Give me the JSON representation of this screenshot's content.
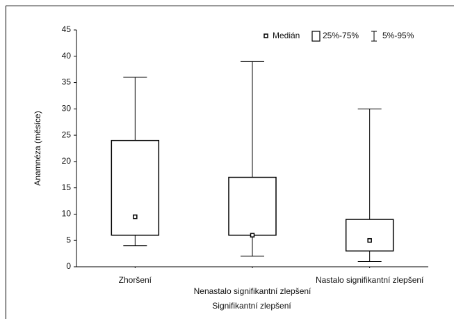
{
  "chart_data": {
    "type": "box",
    "y_label": "Anamnéza (měsíce)",
    "x_label": "Signifikantní zlepšení",
    "categories": [
      "Zhoršení",
      "Nenastalo signifikantní zlepšení",
      "Nastalo signifikantní zlepšení"
    ],
    "boxes": [
      {
        "median": 9.5,
        "q1": 6,
        "q3": 24,
        "low": 4,
        "high": 36
      },
      {
        "median": 6,
        "q1": 6,
        "q3": 17,
        "low": 2,
        "high": 39
      },
      {
        "median": 5,
        "q1": 3,
        "q3": 9,
        "low": 1,
        "high": 30
      }
    ],
    "legend": [
      "Medián",
      "25%-75%",
      "5%-95%"
    ],
    "ylim": [
      0,
      45
    ],
    "yticks": [
      0,
      5,
      10,
      15,
      20,
      25,
      30,
      35,
      40,
      45
    ]
  }
}
